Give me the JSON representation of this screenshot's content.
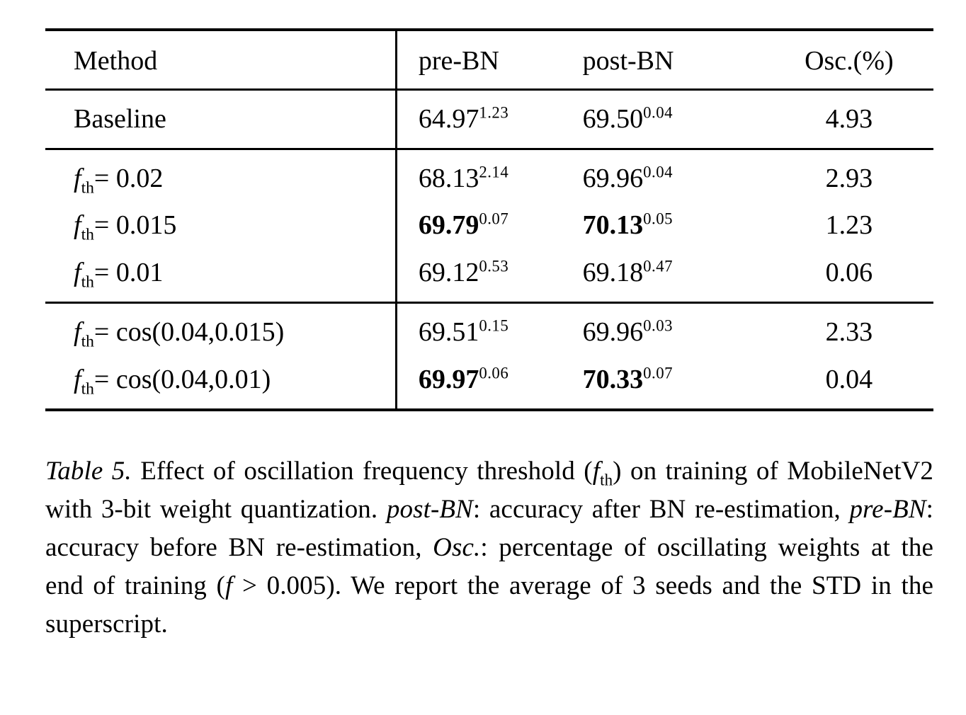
{
  "table": {
    "headers": {
      "method": "Method",
      "pre_bn": "pre-BN",
      "post_bn": "post-BN",
      "osc": "Osc.(%)"
    },
    "rows": [
      {
        "method_label": "Baseline",
        "pre": "64.97",
        "pre_sup": "1.23",
        "post": "69.50",
        "post_sup": "0.04",
        "osc": "4.93"
      },
      {
        "f": "f",
        "f_sub": "th",
        "rest": "= 0.02",
        "pre": "68.13",
        "pre_sup": "2.14",
        "post": "69.96",
        "post_sup": "0.04",
        "osc": "2.93"
      },
      {
        "f": "f",
        "f_sub": "th",
        "rest": "= 0.015",
        "pre": "69.79",
        "pre_sup": "0.07",
        "post": "70.13",
        "post_sup": "0.05",
        "osc": "1.23"
      },
      {
        "f": "f",
        "f_sub": "th",
        "rest": "= 0.01",
        "pre": "69.12",
        "pre_sup": "0.53",
        "post": "69.18",
        "post_sup": "0.47",
        "osc": "0.06"
      },
      {
        "f": "f",
        "f_sub": "th",
        "rest": "= cos(0.04,0.015)",
        "pre": "69.51",
        "pre_sup": "0.15",
        "post": "69.96",
        "post_sup": "0.03",
        "osc": "2.33"
      },
      {
        "f": "f",
        "f_sub": "th",
        "rest": "= cos(0.04,0.01)",
        "pre": "69.97",
        "pre_sup": "0.06",
        "post": "70.33",
        "post_sup": "0.07",
        "osc": "0.04"
      }
    ]
  },
  "caption": {
    "label": "Table 5.",
    "part1": " Effect of oscillation frequency threshold (",
    "f1": "f",
    "f1_sub": "th",
    "part2": ") on training of MobileNetV2 with 3-bit weight quantization. ",
    "post_bn": "post-BN",
    "part3": ": accuracy after BN re-estimation, ",
    "pre_bn": "pre-BN",
    "part4": ": accuracy before BN re-estimation, ",
    "osc": "Osc.",
    "part5": ": percentage of oscillating weights at the end of training (",
    "f2": "f",
    "part6": " > 0.005). We report the average of 3 seeds and the STD in the superscript."
  }
}
